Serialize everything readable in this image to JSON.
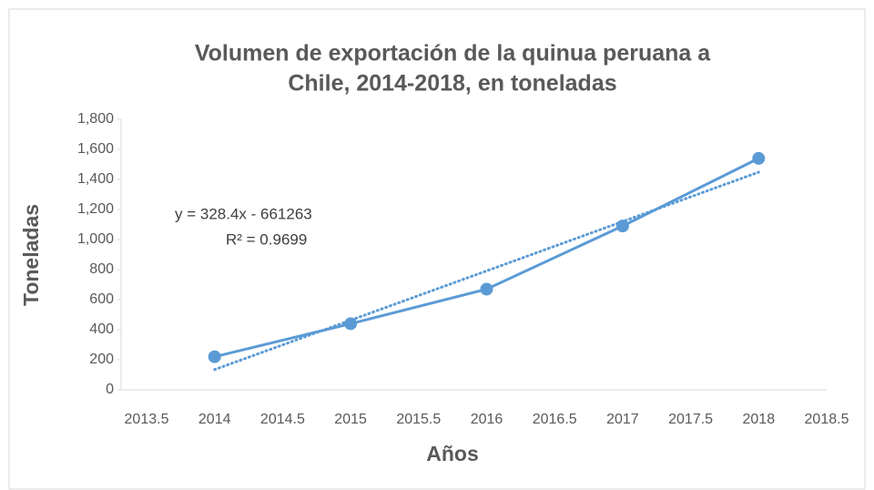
{
  "chart_data": {
    "type": "line",
    "title": [
      "Volumen de exportación de la quinua peruana a",
      "Chile, 2014-2018, en toneladas"
    ],
    "xlabel": "Años",
    "ylabel": "Toneladas",
    "x": [
      2014,
      2015,
      2016,
      2017,
      2018
    ],
    "series": [
      {
        "color": "#5b9bd5",
        "values": [
          220,
          440,
          670,
          1090,
          1540
        ]
      }
    ],
    "trendline": {
      "slope": 328.4,
      "intercept": -661263,
      "color": "#5b9bd5",
      "style": "dotted"
    },
    "annotations": [
      "y = 328.4x - 661263",
      "R² = 0.9699"
    ],
    "xlim": [
      2013.5,
      2018.5
    ],
    "xticks": [
      2013.5,
      2014,
      2014.5,
      2015,
      2015.5,
      2016,
      2016.5,
      2017,
      2017.5,
      2018,
      2018.5
    ],
    "ylim": [
      0,
      1800
    ],
    "yticks": [
      0,
      200,
      400,
      600,
      800,
      {
        "value": 1000,
        "label": "1,000"
      },
      {
        "value": 1200,
        "label": "1,200"
      },
      {
        "value": 1400,
        "label": "1,400"
      },
      {
        "value": 1600,
        "label": "1,600"
      },
      {
        "value": 1800,
        "label": "1,800"
      }
    ],
    "grid": false
  }
}
